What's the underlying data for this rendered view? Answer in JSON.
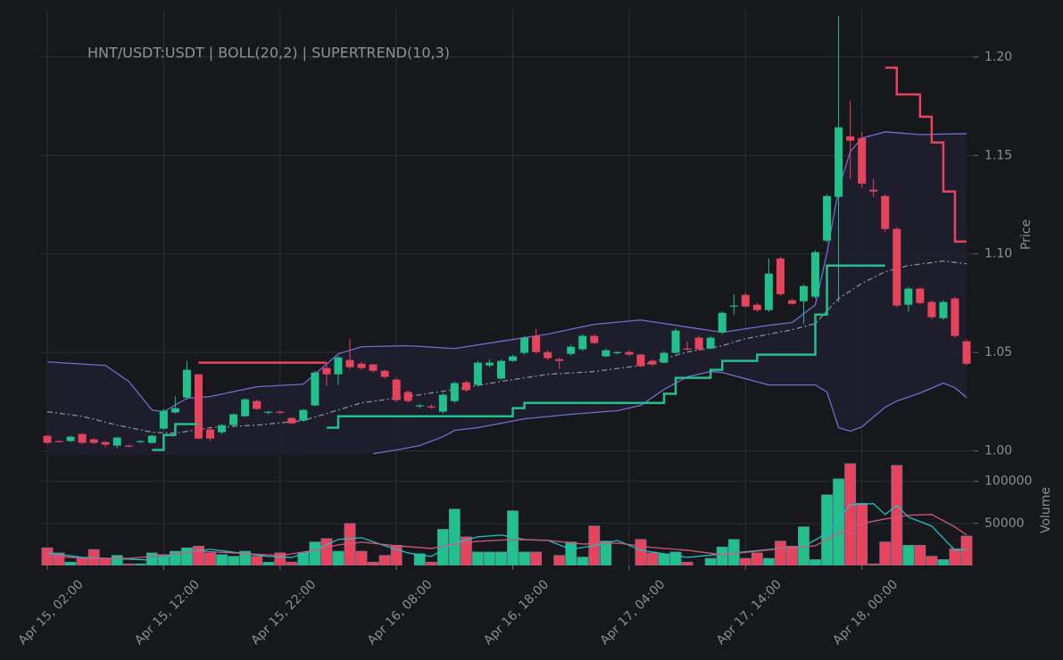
{
  "chart_data": {
    "type": "candlestick",
    "title": "HNT/USDT:USDT | BOLL(20,2) | SUPERTREND(10,3)",
    "ylabel": "Price",
    "up_color": "#22c08b",
    "down_color": "#e8435d",
    "grid": true,
    "x": [
      "Apr 15, 02:00",
      "Apr 15, 03:00",
      "Apr 15, 04:00",
      "Apr 15, 05:00",
      "Apr 15, 06:00",
      "Apr 15, 07:00",
      "Apr 15, 08:00",
      "Apr 15, 09:00",
      "Apr 15, 10:00",
      "Apr 15, 11:00",
      "Apr 15, 12:00",
      "Apr 15, 13:00",
      "Apr 15, 14:00",
      "Apr 15, 15:00",
      "Apr 15, 16:00",
      "Apr 15, 17:00",
      "Apr 15, 18:00",
      "Apr 15, 19:00",
      "Apr 15, 20:00",
      "Apr 15, 21:00",
      "Apr 15, 22:00",
      "Apr 15, 23:00",
      "Apr 16, 00:00",
      "Apr 16, 01:00",
      "Apr 16, 02:00",
      "Apr 16, 03:00",
      "Apr 16, 04:00",
      "Apr 16, 05:00",
      "Apr 16, 06:00",
      "Apr 16, 07:00",
      "Apr 16, 08:00",
      "Apr 16, 09:00",
      "Apr 16, 10:00",
      "Apr 16, 11:00",
      "Apr 16, 12:00",
      "Apr 16, 13:00",
      "Apr 16, 14:00",
      "Apr 16, 15:00",
      "Apr 16, 16:00",
      "Apr 16, 17:00",
      "Apr 16, 18:00",
      "Apr 16, 19:00",
      "Apr 16, 20:00",
      "Apr 16, 21:00",
      "Apr 16, 22:00",
      "Apr 16, 23:00",
      "Apr 17, 00:00",
      "Apr 17, 01:00",
      "Apr 17, 02:00",
      "Apr 17, 03:00",
      "Apr 17, 04:00",
      "Apr 17, 05:00",
      "Apr 17, 06:00",
      "Apr 17, 07:00",
      "Apr 17, 08:00",
      "Apr 17, 09:00",
      "Apr 17, 10:00",
      "Apr 17, 11:00",
      "Apr 17, 12:00",
      "Apr 17, 13:00",
      "Apr 17, 14:00",
      "Apr 17, 15:00",
      "Apr 17, 16:00",
      "Apr 17, 17:00",
      "Apr 17, 18:00",
      "Apr 17, 19:00",
      "Apr 17, 20:00",
      "Apr 17, 21:00",
      "Apr 17, 22:00",
      "Apr 17, 23:00",
      "Apr 18, 00:00",
      "Apr 18, 01:00",
      "Apr 18, 02:00",
      "Apr 18, 03:00",
      "Apr 18, 04:00",
      "Apr 18, 05:00",
      "Apr 18, 06:00",
      "Apr 18, 07:00",
      "Apr 18, 08:00",
      "Apr 18, 09:00"
    ],
    "open": [
      1.0077,
      1.005,
      1.005,
      1.0086,
      1.0059,
      1.0045,
      1.0027,
      1.0027,
      1.0045,
      1.0041,
      1.0113,
      1.0195,
      1.0271,
      1.0389,
      1.0109,
      1.0095,
      1.0131,
      1.0176,
      1.0253,
      1.0195,
      1.0199,
      1.0167,
      1.0154,
      1.0231,
      1.0421,
      1.0389,
      1.0462,
      1.0443,
      1.0439,
      1.0407,
      1.0362,
      1.0299,
      1.0226,
      1.0226,
      1.0199,
      1.0253,
      1.0348,
      1.0335,
      1.0434,
      1.0367,
      1.0457,
      1.0498,
      1.0584,
      1.0502,
      1.0466,
      1.0493,
      1.0516,
      1.0584,
      1.048,
      1.0498,
      1.0502,
      1.0489,
      1.0457,
      1.0448,
      1.0498,
      1.052,
      1.0575,
      1.052,
      1.0602,
      1.0733,
      1.0792,
      1.0742,
      1.0715,
      1.0977,
      1.0765,
      1.076,
      1.0783,
      1.1068,
      1.129,
      1.1597,
      1.1588,
      1.1326,
      1.1294,
      1.1127,
      1.0742,
      1.0824,
      1.0756,
      1.0674,
      1.0774,
      1.0557
    ],
    "high": [
      1.0081,
      1.0054,
      1.0077,
      1.009,
      1.0063,
      1.005,
      1.0072,
      1.0032,
      1.0054,
      1.0081,
      1.0213,
      1.0276,
      1.0457,
      1.0389,
      1.0118,
      1.0136,
      1.019,
      1.0267,
      1.0262,
      1.0204,
      1.0204,
      1.0172,
      1.0213,
      1.0407,
      1.0448,
      1.0484,
      1.057,
      1.0452,
      1.0443,
      1.0412,
      1.0371,
      1.0308,
      1.024,
      1.0235,
      1.0294,
      1.0353,
      1.0357,
      1.0457,
      1.0466,
      1.0466,
      1.0489,
      1.0584,
      1.062,
      1.0511,
      1.0475,
      1.0538,
      1.0593,
      1.0593,
      1.052,
      1.0507,
      1.0511,
      1.0493,
      1.0466,
      1.0507,
      1.062,
      1.0557,
      1.0584,
      1.0584,
      1.071,
      1.0796,
      1.0801,
      1.0751,
      1.0977,
      1.0986,
      1.0774,
      1.0846,
      1.1018,
      1.1303,
      1.2208,
      1.1778,
      1.162,
      1.138,
      1.1303,
      1.1136,
      1.0833,
      1.0833,
      1.0765,
      1.0765,
      1.0783,
      1.0566
    ],
    "low": [
      1.0036,
      1.0045,
      1.0045,
      1.0036,
      1.0036,
      1.0018,
      1.0014,
      1.0018,
      1.0041,
      1.0036,
      1.0104,
      1.019,
      1.0262,
      1.0059,
      1.005,
      1.0086,
      1.0122,
      1.0172,
      1.0208,
      1.0186,
      1.0186,
      1.0136,
      1.0149,
      1.0226,
      1.033,
      1.0335,
      1.0416,
      1.0412,
      1.0398,
      1.0367,
      1.0249,
      1.0244,
      1.0217,
      1.0213,
      1.019,
      1.0244,
      1.0299,
      1.0326,
      1.0425,
      1.0362,
      1.0452,
      1.0489,
      1.0493,
      1.0462,
      1.0416,
      1.0484,
      1.0507,
      1.0543,
      1.0475,
      1.0489,
      1.0484,
      1.0425,
      1.043,
      1.0443,
      1.0493,
      1.0511,
      1.0511,
      1.0516,
      1.0593,
      1.0692,
      1.0729,
      1.0706,
      1.0706,
      1.0787,
      1.0742,
      1.0647,
      1.0774,
      1.1059,
      1.0756,
      1.138,
      1.1335,
      1.129,
      1.1113,
      1.0729,
      1.0706,
      1.0742,
      1.067,
      1.0665,
      1.0575,
      1.0434
    ],
    "close": [
      1.0041,
      1.0047,
      1.0072,
      1.0041,
      1.0041,
      1.0032,
      1.0068,
      1.0023,
      1.005,
      1.0077,
      1.0204,
      1.0217,
      1.0412,
      1.0063,
      1.0063,
      1.0131,
      1.0186,
      1.0262,
      1.0213,
      1.0199,
      1.0195,
      1.014,
      1.0208,
      1.0398,
      1.0389,
      1.0475,
      1.0425,
      1.0421,
      1.0407,
      1.0376,
      1.0258,
      1.0253,
      1.0231,
      1.0222,
      1.0285,
      1.0344,
      1.0308,
      1.0448,
      1.0448,
      1.0457,
      1.048,
      1.0575,
      1.0502,
      1.0471,
      1.0457,
      1.0529,
      1.0584,
      1.0548,
      1.0511,
      1.0502,
      1.0489,
      1.043,
      1.0439,
      1.0498,
      1.0611,
      1.0516,
      1.0516,
      1.0575,
      1.0701,
      1.0738,
      1.0733,
      1.0715,
      1.09,
      1.0796,
      1.0747,
      1.0837,
      1.1009,
      1.1294,
      1.1643,
      1.1575,
      1.1357,
      1.1317,
      1.1127,
      1.0738,
      1.0824,
      1.0751,
      1.0679,
      1.0756,
      1.0584,
      1.0443
    ],
    "ylim": [
      0.998,
      1.2235
    ],
    "yticks": [
      {
        "value": 1,
        "label": "1.00"
      },
      1.05,
      {
        "value": 1.1,
        "label": "1.10"
      },
      1.15,
      {
        "value": 1.2,
        "label": "1.20"
      }
    ],
    "xticks": [
      "Apr 15, 02:00",
      "Apr 15, 12:00",
      "Apr 15, 22:00",
      "Apr 16, 08:00",
      "Apr 16, 18:00",
      "Apr 17, 04:00",
      "Apr 17, 14:00",
      "Apr 18, 00:00"
    ],
    "overlays": [
      {
        "color": "#7a68cf",
        "x": [
          "Apr 15, 02:00",
          "Apr 15, 07:00",
          "Apr 15, 09:00",
          "Apr 15, 11:00",
          "Apr 15, 12:00",
          "Apr 15, 14:00",
          "Apr 15, 16:00",
          "Apr 15, 20:00",
          "Apr 16, 00:00",
          "Apr 16, 01:00",
          "Apr 16, 03:00",
          "Apr 16, 05:00",
          "Apr 16, 09:00",
          "Apr 16, 13:00",
          "Apr 16, 17:00",
          "Apr 16, 21:00",
          "Apr 17, 01:00",
          "Apr 17, 05:00",
          "Apr 17, 09:00",
          "Apr 17, 12:00",
          "Apr 17, 16:00",
          "Apr 17, 18:00",
          "Apr 17, 20:00",
          "Apr 17, 21:00",
          "Apr 17, 22:00",
          "Apr 17, 23:00",
          "Apr 18, 00:00",
          "Apr 18, 02:00",
          "Apr 18, 05:00",
          "Apr 18, 09:00"
        ],
        "values": [
          1.0452,
          1.0434,
          1.0353,
          1.0208,
          1.0199,
          1.0267,
          1.0276,
          1.0326,
          1.0339,
          1.0389,
          1.0493,
          1.0529,
          1.0534,
          1.052,
          1.0557,
          1.0593,
          1.0643,
          1.0665,
          1.0629,
          1.0602,
          1.0638,
          1.0652,
          1.0742,
          1.1005,
          1.133,
          1.152,
          1.1588,
          1.162,
          1.1606,
          1.1611
        ]
      },
      {
        "color": "#7a68cf",
        "x": [
          "Apr 16, 06:00",
          "Apr 16, 08:00",
          "Apr 16, 10:00",
          "Apr 16, 12:00",
          "Apr 16, 13:00",
          "Apr 16, 15:00",
          "Apr 16, 19:00",
          "Apr 16, 23:00",
          "Apr 17, 03:00",
          "Apr 17, 05:00",
          "Apr 17, 07:00",
          "Apr 17, 09:00",
          "Apr 17, 11:00",
          "Apr 17, 12:00",
          "Apr 17, 16:00",
          "Apr 17, 20:00",
          "Apr 17, 21:00",
          "Apr 17, 22:00",
          "Apr 17, 23:00",
          "Apr 18, 00:00",
          "Apr 18, 02:00",
          "Apr 18, 03:00",
          "Apr 18, 05:00",
          "Apr 18, 07:00",
          "Apr 18, 08:00",
          "Apr 18, 09:00"
        ],
        "values": [
          0.9986,
          1.0005,
          1.0027,
          1.0072,
          1.0104,
          1.0118,
          1.0163,
          1.0186,
          1.0204,
          1.0231,
          1.0312,
          1.0376,
          1.0403,
          1.0398,
          1.0335,
          1.0335,
          1.0299,
          1.0118,
          1.01,
          1.0122,
          1.0222,
          1.0253,
          1.0294,
          1.0344,
          1.0321,
          1.0271
        ]
      },
      {
        "color": "#8a8aa0",
        "dash": "6 3 2 3",
        "x": [
          "Apr 15, 02:00",
          "Apr 15, 05:00",
          "Apr 15, 08:00",
          "Apr 15, 11:00",
          "Apr 15, 13:00",
          "Apr 15, 16:00",
          "Apr 15, 20:00",
          "Apr 16, 00:00",
          "Apr 16, 03:00",
          "Apr 16, 05:00",
          "Apr 16, 09:00",
          "Apr 16, 13:00",
          "Apr 16, 17:00",
          "Apr 16, 21:00",
          "Apr 17, 01:00",
          "Apr 17, 05:00",
          "Apr 17, 09:00",
          "Apr 17, 12:00",
          "Apr 17, 14:00",
          "Apr 17, 18:00",
          "Apr 17, 20:00",
          "Apr 17, 22:00",
          "Apr 18, 00:00",
          "Apr 18, 02:00",
          "Apr 18, 04:00",
          "Apr 18, 07:00",
          "Apr 18, 09:00"
        ],
        "values": [
          1.0199,
          1.0176,
          1.0131,
          1.0095,
          1.009,
          1.0118,
          1.0131,
          1.0154,
          1.0208,
          1.0244,
          1.0276,
          1.0312,
          1.0353,
          1.0389,
          1.0403,
          1.0434,
          1.0502,
          1.0534,
          1.057,
          1.0615,
          1.0647,
          1.0774,
          1.0851,
          1.091,
          1.0941,
          1.0964,
          1.095
        ]
      },
      {
        "color": "#22c08b",
        "step": true,
        "width": 2.5,
        "x": [
          "Apr 15, 11:00",
          "Apr 15, 12:00",
          "Apr 15, 13:00",
          "Apr 15, 15:00"
        ],
        "values": [
          1.0005,
          1.0081,
          1.0136,
          1.0136
        ]
      },
      {
        "color": "#e8435d",
        "step": true,
        "width": 2.5,
        "x": [
          "Apr 15, 15:00",
          "Apr 16, 02:00"
        ],
        "values": [
          1.0448,
          1.0448
        ]
      },
      {
        "color": "#22c08b",
        "step": true,
        "width": 2.5,
        "x": [
          "Apr 16, 02:00",
          "Apr 16, 03:00",
          "Apr 16, 18:00",
          "Apr 16, 19:00",
          "Apr 17, 07:00",
          "Apr 17, 08:00",
          "Apr 17, 11:00",
          "Apr 17, 12:00",
          "Apr 17, 15:00",
          "Apr 17, 20:00",
          "Apr 17, 21:00",
          "Apr 18, 02:00"
        ],
        "values": [
          1.0118,
          1.0176,
          1.0217,
          1.0244,
          1.029,
          1.0371,
          1.0412,
          1.0457,
          1.0489,
          1.0692,
          1.0941,
          1.0941
        ]
      },
      {
        "color": "#e8435d",
        "step": true,
        "width": 2.5,
        "x": [
          "Apr 18, 02:00",
          "Apr 18, 03:00",
          "Apr 18, 05:00",
          "Apr 18, 06:00",
          "Apr 18, 07:00",
          "Apr 18, 08:00",
          "Apr 18, 09:00"
        ],
        "values": [
          1.1946,
          1.181,
          1.1697,
          1.1566,
          1.1317,
          1.1063,
          1.1063
        ]
      }
    ],
    "volume": {
      "ylabel": "Volume",
      "ylim": [
        0,
        124000
      ],
      "yticks": [
        50000,
        100000
      ],
      "values": [
        21000,
        15000,
        4000,
        8500,
        19000,
        8500,
        12000,
        2000,
        2000,
        15000,
        13000,
        17000,
        21000,
        23000,
        15000,
        13000,
        11000,
        17000,
        11000,
        4000,
        15000,
        4000,
        15000,
        28000,
        32000,
        17000,
        50000,
        17000,
        4000,
        12000,
        24000,
        0,
        14000,
        4000,
        43000,
        67000,
        34000,
        16000,
        16000,
        16000,
        65000,
        16000,
        16000,
        0,
        12000,
        28000,
        10000,
        47000,
        29000,
        0,
        0,
        31000,
        15000,
        14000,
        16000,
        4000,
        0,
        8500,
        22000,
        31000,
        8500,
        15000,
        8500,
        29000,
        23000,
        46000,
        7000,
        84000,
        103000,
        121000,
        74000,
        2000,
        28000,
        119000,
        24000,
        24000,
        11000,
        7000,
        20000,
        35000
      ],
      "overlays": [
        {
          "color": "#1fbfc4",
          "x": [
            "Apr 15, 02:00",
            "Apr 15, 05:00",
            "Apr 15, 11:00",
            "Apr 15, 14:00",
            "Apr 15, 16:00",
            "Apr 15, 21:00",
            "Apr 15, 23:00",
            "Apr 16, 01:00",
            "Apr 16, 03:00",
            "Apr 16, 05:00",
            "Apr 16, 07:00",
            "Apr 16, 09:00",
            "Apr 16, 11:00",
            "Apr 16, 13:00",
            "Apr 16, 15:00",
            "Apr 16, 17:00",
            "Apr 16, 19:00",
            "Apr 16, 21:00",
            "Apr 16, 23:00",
            "Apr 17, 01:00",
            "Apr 17, 03:00",
            "Apr 17, 05:00",
            "Apr 17, 09:00",
            "Apr 17, 13:00",
            "Apr 17, 17:00",
            "Apr 17, 19:00",
            "Apr 17, 21:00",
            "Apr 17, 23:00",
            "Apr 18, 01:00",
            "Apr 18, 02:00",
            "Apr 18, 03:00",
            "Apr 18, 04:00",
            "Apr 18, 06:00",
            "Apr 18, 08:00",
            "Apr 18, 09:00"
          ],
          "values": [
            14900,
            9600,
            6400,
            16000,
            19200,
            10600,
            9600,
            18100,
            30900,
            33000,
            23400,
            14900,
            10600,
            26600,
            34000,
            36200,
            30900,
            29800,
            19200,
            23400,
            29800,
            18100,
            9600,
            14900,
            20200,
            22300,
            38300,
            72400,
            73400,
            60600,
            71300,
            57500,
            46800,
            18100,
            19200
          ]
        },
        {
          "color": "#d0587a",
          "x": [
            "Apr 15, 02:00",
            "Apr 15, 05:00",
            "Apr 15, 09:00",
            "Apr 15, 12:00",
            "Apr 15, 15:00",
            "Apr 15, 18:00",
            "Apr 15, 22:00",
            "Apr 16, 01:00",
            "Apr 16, 03:00",
            "Apr 16, 05:00",
            "Apr 16, 08:00",
            "Apr 16, 11:00",
            "Apr 16, 13:00",
            "Apr 16, 15:00",
            "Apr 16, 18:00",
            "Apr 16, 21:00",
            "Apr 17, 00:00",
            "Apr 17, 03:00",
            "Apr 17, 06:00",
            "Apr 17, 09:00",
            "Apr 17, 12:00",
            "Apr 17, 15:00",
            "Apr 17, 18:00",
            "Apr 17, 20:00",
            "Apr 17, 22:00",
            "Apr 18, 00:00",
            "Apr 18, 02:00",
            "Apr 18, 04:00",
            "Apr 18, 06:00",
            "Apr 18, 08:00",
            "Apr 18, 09:00"
          ],
          "values": [
            11700,
            8500,
            8500,
            11700,
            17000,
            14900,
            11700,
            18100,
            24500,
            27700,
            23400,
            20200,
            25500,
            28700,
            30900,
            29800,
            25500,
            26600,
            21300,
            18100,
            12800,
            17000,
            21300,
            23400,
            38300,
            50000,
            55300,
            59600,
            60600,
            45800,
            36200
          ]
        }
      ]
    }
  }
}
